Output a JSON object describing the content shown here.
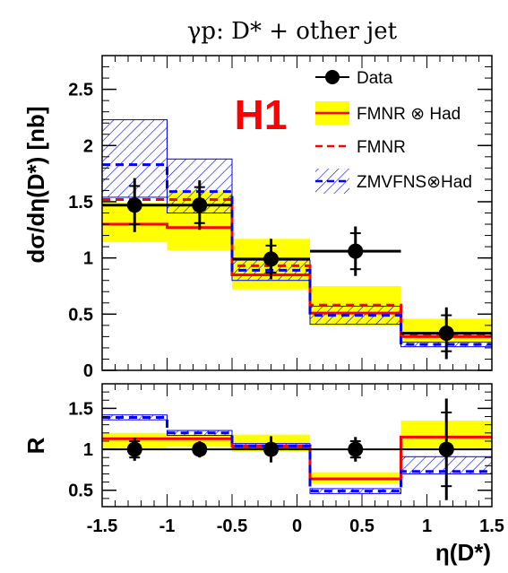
{
  "chart_data": [
    {
      "type": "step",
      "panel": "upper",
      "title": "γp:  D* + other jet",
      "ylabel": "dσ/dη(D*) [nb]",
      "xlabel": "",
      "xlim": [
        -1.5,
        1.5
      ],
      "ylim": [
        0,
        2.8
      ],
      "yticks": [
        "0",
        "0.5",
        "1",
        "1.5",
        "2",
        "2.5"
      ],
      "xticks": [],
      "annotation": "H1",
      "bin_edges": [
        -1.5,
        -1.0,
        -0.5,
        0.1,
        0.8,
        1.5
      ],
      "series": [
        {
          "name": "Data",
          "kind": "points",
          "x": [
            -1.25,
            -0.75,
            -0.2,
            0.45,
            1.15
          ],
          "x_err": [
            [
              -1.5,
              -1.0
            ],
            [
              -1.0,
              -0.5
            ],
            [
              -0.5,
              0.1
            ],
            [
              0.1,
              0.8
            ],
            [
              0.8,
              1.5
            ]
          ],
          "y": [
            1.47,
            1.47,
            0.99,
            1.06,
            0.33
          ],
          "y_err_stat": [
            0.17,
            0.16,
            0.12,
            0.16,
            0.16
          ],
          "y_err_tot": [
            0.24,
            0.22,
            0.18,
            0.22,
            0.23
          ]
        },
        {
          "name": "FMNR ⊗ Had",
          "kind": "step_band",
          "values": [
            1.3,
            1.27,
            0.85,
            0.51,
            0.3
          ],
          "band_low": [
            1.14,
            1.07,
            0.72,
            0.4,
            0.25
          ],
          "band_high": [
            1.49,
            1.6,
            1.17,
            0.75,
            0.46
          ],
          "color": "#ff0000",
          "band_color": "#ffff00"
        },
        {
          "name": "FMNR",
          "kind": "step_dashed",
          "values": [
            1.52,
            1.52,
            0.93,
            0.58,
            0.31
          ],
          "color": "#ff0000"
        },
        {
          "name": "ZMVFNS⊗Had",
          "kind": "step_hatched",
          "values": [
            1.83,
            1.59,
            0.89,
            0.49,
            0.23
          ],
          "band_low": [
            1.54,
            1.4,
            0.8,
            0.41,
            0.21
          ],
          "band_high": [
            2.23,
            1.88,
            0.98,
            0.57,
            0.25
          ],
          "color": "#0000ff"
        }
      ]
    },
    {
      "type": "step",
      "panel": "ratio",
      "ylabel": "R",
      "xlabel": "η(D*)",
      "xlim": [
        -1.5,
        1.5
      ],
      "ylim": [
        0.3,
        1.8
      ],
      "yticks": [
        "0.5",
        "1",
        "1.5"
      ],
      "xticks": [
        "-1.5",
        "-1",
        "-0.5",
        "0",
        "0.5",
        "1",
        "1.5"
      ],
      "bin_edges": [
        -1.5,
        -1.0,
        -0.5,
        0.1,
        0.8,
        1.5
      ],
      "series": [
        {
          "name": "Data",
          "kind": "points",
          "x": [
            -1.25,
            -0.75,
            -0.2,
            0.45,
            1.15
          ],
          "y": [
            1.0,
            1.0,
            1.0,
            1.0,
            1.0
          ],
          "y_err_stat": [
            0.1,
            0.06,
            0.06,
            0.1,
            0.45
          ],
          "y_err_tot": [
            0.14,
            0.1,
            0.16,
            0.15,
            0.62
          ]
        },
        {
          "name": "FMNR ⊗ Had",
          "kind": "step_band",
          "values": [
            1.13,
            1.13,
            1.04,
            0.64,
            1.15
          ],
          "band_low": [
            1.0,
            1.03,
            0.97,
            0.58,
            1.0
          ],
          "band_high": [
            1.2,
            1.18,
            1.18,
            0.72,
            1.35
          ],
          "color": "#ff0000",
          "band_color": "#ffff00"
        },
        {
          "name": "ZMVFNS⊗Had",
          "kind": "step_hatched",
          "values": [
            1.39,
            1.2,
            1.04,
            0.49,
            0.73
          ],
          "band_low": [
            1.36,
            1.17,
            1.02,
            0.46,
            0.7
          ],
          "band_high": [
            1.42,
            1.23,
            1.07,
            0.52,
            0.91
          ],
          "color": "#0000ff"
        }
      ]
    }
  ],
  "colors": {
    "data": "#000000",
    "fmnr": "#ff0000",
    "band": "#ffff00",
    "zmvfns": "#0000ff"
  }
}
